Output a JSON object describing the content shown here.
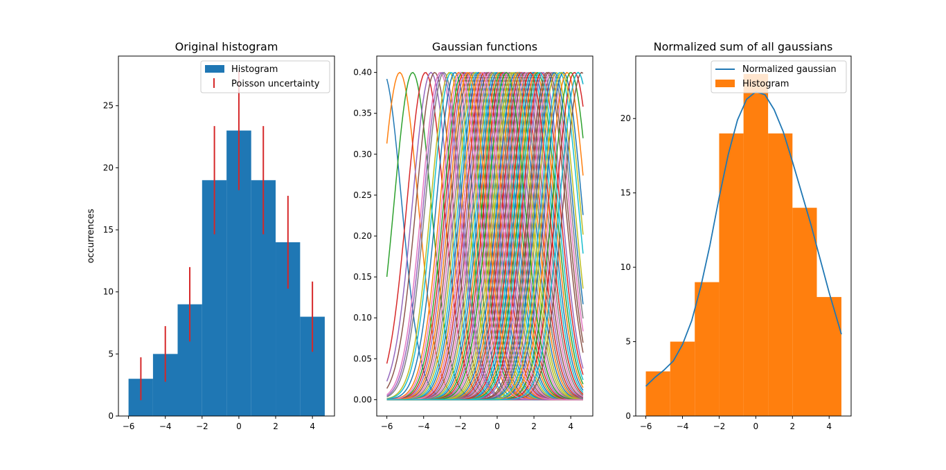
{
  "chart_data": [
    {
      "type": "bar",
      "title": "Original histogram",
      "xlabel": "",
      "ylabel": "occurrences",
      "xlim": [
        -6.55,
        5.2
      ],
      "ylim": [
        0,
        29.0
      ],
      "xticks": [
        -6,
        -4,
        -2,
        0,
        2,
        4
      ],
      "yticks": [
        0,
        5,
        10,
        15,
        20,
        25
      ],
      "bin_edges": [
        -6.0,
        -4.67,
        -3.33,
        -2.0,
        -0.67,
        0.67,
        2.0,
        3.33,
        4.67
      ],
      "values": [
        3,
        5,
        9,
        19,
        23,
        19,
        14,
        8
      ],
      "bar_color": "#1f77b4",
      "errorbar_color": "#d62728",
      "errorbars": {
        "x": [
          -5.33,
          -4.0,
          -2.67,
          -1.33,
          0.0,
          1.33,
          2.67,
          4.0
        ],
        "y": [
          3,
          5,
          9,
          19,
          23,
          19,
          14,
          8
        ],
        "err": [
          1.73,
          2.24,
          3.0,
          4.36,
          4.8,
          4.36,
          3.74,
          2.83
        ]
      },
      "legend": [
        "Histogram",
        "Poisson uncertainty"
      ],
      "legend_position": "upper right",
      "grid": false
    },
    {
      "type": "line",
      "title": "Gaussian functions",
      "xlabel": "",
      "ylabel": "",
      "xlim": [
        -6.55,
        5.2
      ],
      "ylim": [
        -0.02,
        0.42
      ],
      "xticks": [
        -6,
        -4,
        -2,
        0,
        2,
        4
      ],
      "yticks": [
        0.0,
        0.05,
        0.1,
        0.15,
        0.2,
        0.25,
        0.3,
        0.35,
        0.4
      ],
      "ytick_labels": [
        "0.00",
        "0.05",
        "0.10",
        "0.15",
        "0.20",
        "0.25",
        "0.30",
        "0.35",
        "0.40"
      ],
      "x_range": [
        -6.0,
        4.67
      ],
      "curve_peak": 0.4,
      "curve_sigma": 1.0,
      "centers": [
        -6.2,
        -5.3,
        -4.6,
        -3.9,
        -3.6,
        -3.4,
        -3.1,
        -2.9,
        -2.6,
        -2.5,
        -2.3,
        -2.1,
        -1.9,
        -1.8,
        -1.7,
        -1.5,
        -1.4,
        -1.3,
        -1.2,
        -1.1,
        -1.0,
        -0.9,
        -0.8,
        -0.7,
        -0.6,
        -0.5,
        -0.4,
        -0.3,
        -0.2,
        -0.1,
        0.0,
        0.1,
        0.2,
        0.3,
        0.4,
        0.5,
        0.6,
        0.7,
        0.8,
        0.9,
        1.0,
        1.1,
        1.2,
        1.3,
        1.4,
        1.5,
        1.6,
        1.7,
        1.8,
        1.9,
        2.0,
        2.1,
        2.2,
        2.4,
        2.5,
        2.7,
        2.9,
        3.0,
        3.2,
        3.4,
        3.6,
        3.8,
        4.0,
        4.2,
        4.4,
        4.6,
        -2.0,
        -0.3,
        0.9,
        2.3,
        3.1,
        -1.6,
        0.5,
        1.8,
        -3.0,
        2.8,
        -0.8,
        1.2,
        3.5,
        4.4
      ],
      "line_colors": [
        "#1f77b4",
        "#ff7f0e",
        "#2ca02c",
        "#d62728",
        "#9467bd",
        "#8c564b",
        "#e377c2",
        "#7f7f7f",
        "#bcbd22",
        "#17becf"
      ],
      "grid": false
    },
    {
      "type": "bar",
      "title": "Normalized sum of all gaussians",
      "xlabel": "",
      "ylabel": "",
      "xlim": [
        -6.55,
        5.2
      ],
      "ylim": [
        0,
        24.2
      ],
      "xticks": [
        -6,
        -4,
        -2,
        0,
        2,
        4
      ],
      "yticks": [
        0,
        5,
        10,
        15,
        20
      ],
      "bin_edges": [
        -6.0,
        -4.67,
        -3.33,
        -2.0,
        -0.67,
        0.67,
        2.0,
        3.33,
        4.67
      ],
      "values": [
        3,
        5,
        9,
        19,
        23,
        19,
        14,
        8
      ],
      "bar_color": "#ff7f0e",
      "line": {
        "name": "Normalized gaussian",
        "color": "#1f77b4",
        "x": [
          -6.0,
          -5.5,
          -5.0,
          -4.5,
          -4.0,
          -3.5,
          -3.0,
          -2.5,
          -2.0,
          -1.5,
          -1.0,
          -0.5,
          0.0,
          0.5,
          1.0,
          1.5,
          2.0,
          2.5,
          3.0,
          3.5,
          4.0,
          4.67
        ],
        "y": [
          2.0,
          2.6,
          3.1,
          3.7,
          4.8,
          6.4,
          8.7,
          11.5,
          14.7,
          17.6,
          19.9,
          21.3,
          21.8,
          21.6,
          20.6,
          19.1,
          17.1,
          15.0,
          12.9,
          10.6,
          8.3,
          5.5
        ]
      },
      "legend": [
        "Normalized gaussian",
        "Histogram"
      ],
      "legend_position": "upper right",
      "grid": false
    }
  ]
}
